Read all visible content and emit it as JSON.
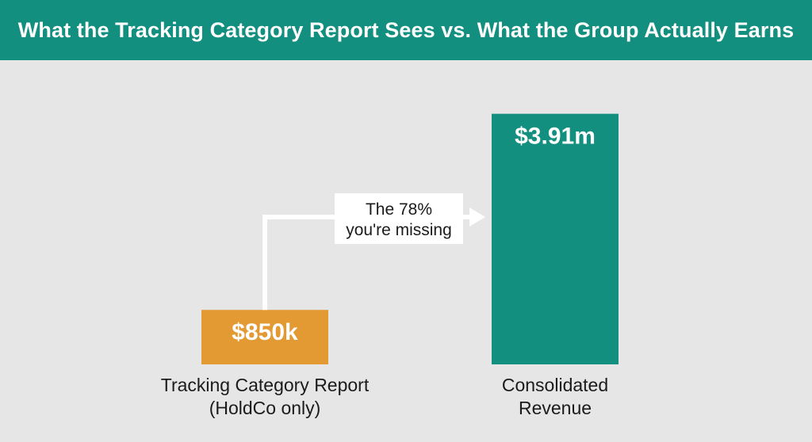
{
  "header": {
    "title": "What the Tracking Category Report Sees vs. What the Group Actually Earns"
  },
  "colors": {
    "header_bg": "#138f80",
    "background": "#e6e6e6",
    "bar_holdco": "#e39a33",
    "bar_consolidated": "#138f80",
    "arrow": "#ffffff",
    "text_dark": "#1b1b1b"
  },
  "chart_data": {
    "type": "bar",
    "title": "What the Tracking Category Report Sees vs. What the Group Actually Earns",
    "categories": [
      [
        "Tracking Category Report",
        "(HoldCo only)"
      ],
      [
        "Consolidated",
        "Revenue"
      ]
    ],
    "values": [
      850000,
      3910000
    ],
    "data_labels": [
      "$850k",
      "$3.91m"
    ],
    "units": "USD",
    "ylim": [
      0,
      4400000
    ],
    "grid": false,
    "legend": "none",
    "annotation": {
      "lines": [
        "The 78%",
        "you're missing"
      ],
      "from_category": 0,
      "to_category": 1
    }
  }
}
